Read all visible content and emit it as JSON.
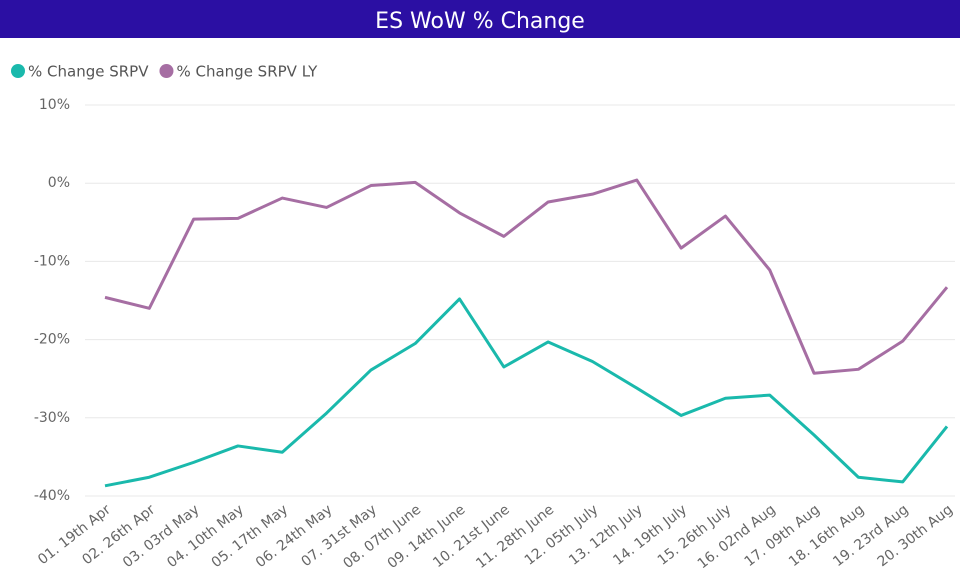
{
  "chart_data": {
    "type": "line",
    "title": "ES WoW % Change",
    "categories": [
      "01. 19th Apr",
      "02. 26th Apr",
      "03. 03rd May",
      "04. 10th May",
      "05. 17th May",
      "06. 24th May",
      "07. 31st May",
      "08. 07th June",
      "09. 14th June",
      "10. 21st June",
      "11. 28th June",
      "12. 05th July",
      "13. 12th July",
      "14. 19th July",
      "15. 26th July",
      "16. 02nd Aug",
      "17. 09th Aug",
      "18. 16th Aug",
      "19. 23rd Aug",
      "20. 30th Aug"
    ],
    "series": [
      {
        "name": "% Change SRPV",
        "color": "#1ab9ac",
        "values": [
          -38.7,
          -37.6,
          -35.7,
          -33.6,
          -34.4,
          -29.4,
          -23.9,
          -20.5,
          -14.8,
          -23.5,
          -20.3,
          -22.8,
          -26.2,
          -29.7,
          -27.5,
          -27.1,
          -32.2,
          -37.6,
          -38.2,
          -31.1
        ]
      },
      {
        "name": "% Change SRPV LY",
        "color": "#a66ea3",
        "values": [
          -14.6,
          -16.0,
          -4.6,
          -4.5,
          -1.9,
          -3.1,
          -0.3,
          0.1,
          -3.8,
          -6.8,
          -2.4,
          -1.4,
          0.4,
          -8.3,
          -4.2,
          -11.1,
          -24.3,
          -23.8,
          -20.2,
          -13.3
        ]
      }
    ],
    "ylim": [
      -40,
      10
    ],
    "yticks": [
      {
        "value": -40,
        "label": "-40%"
      },
      {
        "value": -30,
        "label": "-30%"
      },
      {
        "value": -20,
        "label": "-20%"
      },
      {
        "value": -10,
        "label": "-10%"
      },
      {
        "value": 0,
        "label": "0%"
      },
      {
        "value": 10,
        "label": "10%"
      }
    ],
    "grid": true,
    "legend": "top-left"
  }
}
